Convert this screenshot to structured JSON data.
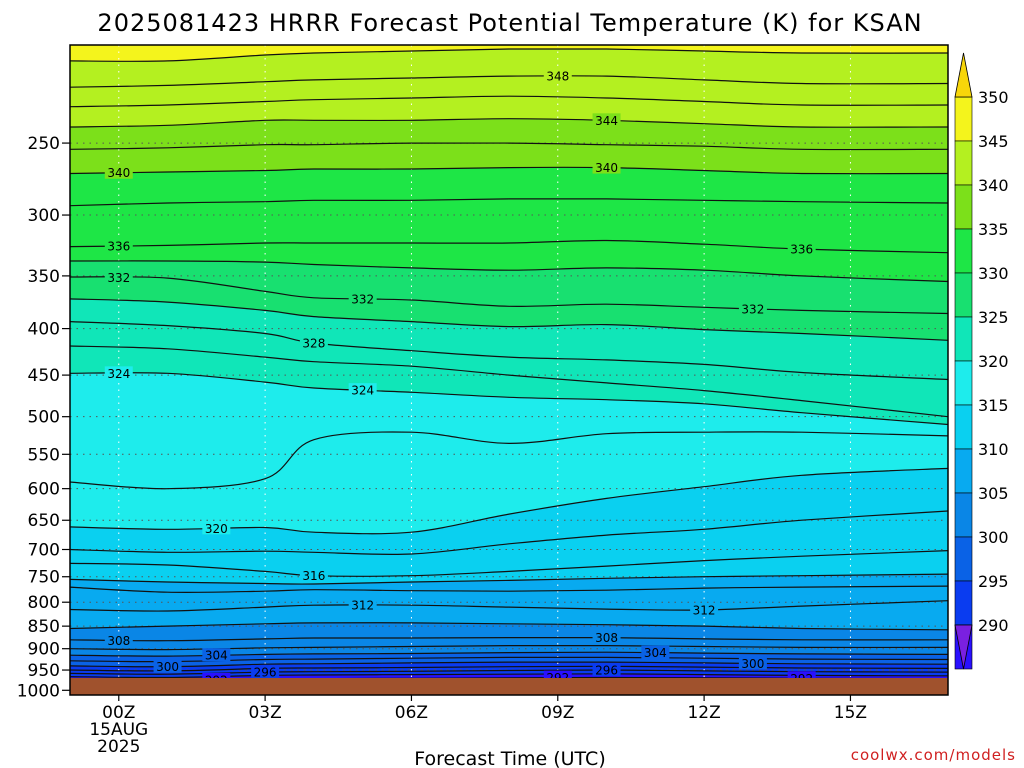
{
  "title": "2025081423 HRRR Forecast Potential Temperature (K) for KSAN",
  "credit": "coolwx.com/models",
  "chart_data": {
    "type": "heatmap",
    "xlabel": "Forecast Time (UTC)",
    "x_range_hours": [
      -1,
      17
    ],
    "y_range_hpa": [
      1012,
      195
    ],
    "y_scale": "log",
    "x_ticks": [
      {
        "h": 0,
        "lines": [
          "00Z",
          "15AUG",
          "2025"
        ]
      },
      {
        "h": 3,
        "lines": [
          "03Z"
        ]
      },
      {
        "h": 6,
        "lines": [
          "06Z"
        ]
      },
      {
        "h": 9,
        "lines": [
          "09Z"
        ]
      },
      {
        "h": 12,
        "lines": [
          "12Z"
        ]
      },
      {
        "h": 15,
        "lines": [
          "15Z"
        ]
      }
    ],
    "y_ticks": [
      250,
      300,
      350,
      400,
      450,
      500,
      550,
      600,
      650,
      700,
      750,
      800,
      850,
      900,
      950,
      1000
    ],
    "colorbar": {
      "levels": [
        285,
        290,
        295,
        300,
        305,
        310,
        315,
        320,
        325,
        330,
        335,
        340,
        345,
        350,
        355
      ],
      "colors": [
        "#7a20e0",
        "#2a10ff",
        "#0a3cf0",
        "#0a62e6",
        "#0a86e6",
        "#08aaf0",
        "#0ad0f0",
        "#1eecec",
        "#10e6b8",
        "#18e070",
        "#1ee646",
        "#7ce01a",
        "#b4f020",
        "#f4f41c",
        "#f8d60a"
      ],
      "labels": [
        290,
        295,
        300,
        305,
        310,
        315,
        320,
        325,
        330,
        335,
        340,
        345,
        350
      ]
    },
    "ground_color": "#a0522d",
    "contour_hours": [
      -1,
      1,
      3,
      4,
      6,
      8,
      10,
      12,
      14,
      17
    ],
    "contours": [
      {
        "k": 350,
        "p": [
          203,
          203,
          200,
          199,
          198,
          197,
          197,
          198,
          199,
          199
        ]
      },
      {
        "k": 348,
        "p": [
          217,
          216,
          214,
          213,
          212,
          211,
          211,
          213,
          215,
          215
        ]
      },
      {
        "k": 346,
        "p": [
          228,
          227,
          225,
          224,
          223,
          222,
          223,
          225,
          227,
          227
        ]
      },
      {
        "k": 344,
        "p": [
          240,
          239,
          236,
          236,
          236,
          235,
          236,
          238,
          240,
          240
        ]
      },
      {
        "k": 342,
        "p": [
          254,
          253,
          251,
          251,
          250,
          250,
          251,
          252,
          254,
          254
        ]
      },
      {
        "k": 340,
        "p": [
          270,
          269,
          268,
          267,
          267,
          266,
          266,
          268,
          270,
          270
        ]
      },
      {
        "k": 338,
        "p": [
          293,
          291,
          290,
          289,
          289,
          288,
          288,
          289,
          290,
          291
        ]
      },
      {
        "k": 336,
        "p": [
          325,
          324,
          322,
          322,
          322,
          322,
          320,
          323,
          327,
          330
        ]
      },
      {
        "k": 334,
        "p": [
          337,
          337,
          338,
          340,
          343,
          345,
          343,
          345,
          350,
          355
        ]
      },
      {
        "k": 332,
        "p": [
          351,
          352,
          364,
          370,
          372,
          378,
          376,
          379,
          382,
          385
        ]
      },
      {
        "k": 330,
        "p": [
          371,
          374,
          382,
          388,
          393,
          398,
          396,
          401,
          405,
          412
        ]
      },
      {
        "k": 328,
        "p": [
          393,
          397,
          405,
          415,
          423,
          430,
          433,
          438,
          447,
          455
        ]
      },
      {
        "k": 326,
        "p": [
          418,
          421,
          430,
          435,
          440,
          450,
          459,
          468,
          480,
          500
        ]
      },
      {
        "k": 324,
        "p": [
          448,
          448,
          458,
          465,
          470,
          476,
          479,
          484,
          495,
          510
        ]
      },
      {
        "k": 322,
        "p": [
          590,
          600,
          585,
          530,
          520,
          535,
          522,
          520,
          520,
          525
        ]
      },
      {
        "k": 320,
        "p": [
          661,
          665,
          662,
          670,
          670,
          640,
          615,
          597,
          580,
          570
        ]
      },
      {
        "k": 318,
        "p": [
          700,
          705,
          703,
          705,
          708,
          690,
          675,
          665,
          650,
          635
        ]
      },
      {
        "k": 316,
        "p": [
          725,
          728,
          740,
          748,
          748,
          740,
          730,
          720,
          712,
          702
        ]
      },
      {
        "k": 315,
        "p": [
          755,
          760,
          763,
          764,
          760,
          757,
          753,
          750,
          748,
          745
        ]
      },
      {
        "k": 314,
        "p": [
          770,
          780,
          778,
          775,
          777,
          778,
          776,
          772,
          770,
          768
        ]
      },
      {
        "k": 312,
        "p": [
          815,
          818,
          810,
          806,
          806,
          810,
          814,
          816,
          808,
          797
        ]
      },
      {
        "k": 310,
        "p": [
          855,
          850,
          845,
          843,
          843,
          845,
          847,
          850,
          855,
          858
        ]
      },
      {
        "k": 308,
        "p": [
          880,
          882,
          878,
          876,
          876,
          875,
          875,
          878,
          880,
          880
        ]
      },
      {
        "k": 306,
        "p": [
          900,
          902,
          898,
          897,
          895,
          893,
          893,
          895,
          897,
          897
        ]
      },
      {
        "k": 304,
        "p": [
          915,
          917,
          913,
          912,
          911,
          909,
          908,
          910,
          912,
          913
        ]
      },
      {
        "k": 302,
        "p": [
          928,
          930,
          925,
          924,
          922,
          920,
          920,
          922,
          924,
          925
        ]
      },
      {
        "k": 300,
        "p": [
          940,
          942,
          936,
          935,
          933,
          931,
          931,
          933,
          935,
          936
        ]
      },
      {
        "k": 298,
        "p": [
          950,
          952,
          946,
          945,
          944,
          942,
          941,
          943,
          945,
          946
        ]
      },
      {
        "k": 296,
        "p": [
          958,
          960,
          955,
          954,
          953,
          951,
          950,
          952,
          954,
          955
        ]
      },
      {
        "k": 294,
        "p": [
          966,
          968,
          963,
          962,
          961,
          960,
          959,
          961,
          963,
          964
        ]
      },
      {
        "k": 292,
        "p": [
          974,
          976,
          972,
          971,
          970,
          969,
          968,
          969,
          970,
          971
        ]
      }
    ],
    "contour_labels": [
      {
        "k": 348,
        "h": 9.0
      },
      {
        "k": 344,
        "h": 10.0
      },
      {
        "k": 340,
        "h": 0.0
      },
      {
        "k": 340,
        "h": 10.0
      },
      {
        "k": 336,
        "h": 0.0
      },
      {
        "k": 336,
        "h": 14.0
      },
      {
        "k": 332,
        "h": 0.0
      },
      {
        "k": 332,
        "h": 5.0
      },
      {
        "k": 332,
        "h": 13.0
      },
      {
        "k": 328,
        "h": 4.0
      },
      {
        "k": 324,
        "h": 0.0
      },
      {
        "k": 324,
        "h": 5.0
      },
      {
        "k": 320,
        "h": 2.0
      },
      {
        "k": 316,
        "h": 4.0
      },
      {
        "k": 312,
        "h": 5.0
      },
      {
        "k": 312,
        "h": 12.0
      },
      {
        "k": 308,
        "h": 0.0
      },
      {
        "k": 308,
        "h": 10.0
      },
      {
        "k": 304,
        "h": 2.0
      },
      {
        "k": 304,
        "h": 11.0
      },
      {
        "k": 300,
        "h": 1.0
      },
      {
        "k": 300,
        "h": 13.0
      },
      {
        "k": 296,
        "h": 3.0
      },
      {
        "k": 296,
        "h": 10.0
      },
      {
        "k": 292,
        "h": 2.0
      },
      {
        "k": 292,
        "h": 9.0
      },
      {
        "k": 292,
        "h": 14.0
      }
    ]
  }
}
